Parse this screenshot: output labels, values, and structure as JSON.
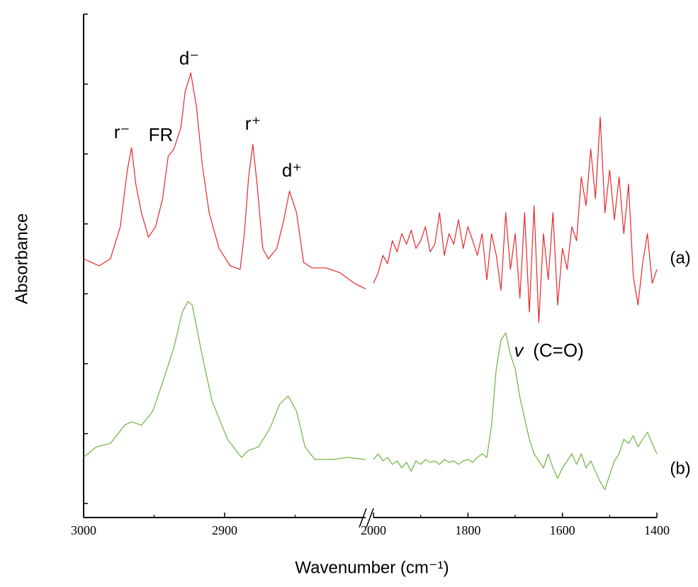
{
  "chart_data": [
    {
      "type": "line",
      "y_label": "Absorbance",
      "x_label": "Wavenumber (cm⁻¹)",
      "ylim": [
        -0.2,
        7
      ],
      "yticks": [
        0,
        1,
        2,
        3,
        4,
        5,
        6,
        7
      ],
      "ytick_labels": false,
      "xlim": [
        3000,
        2800
      ],
      "xticks": [
        3000,
        2900
      ],
      "xminorticks": [
        2950,
        2850
      ],
      "annotations": [
        {
          "text": "r⁻"
        },
        {
          "text": "FR"
        },
        {
          "text": "d⁻"
        },
        {
          "text": "r⁺"
        },
        {
          "text": "d⁺"
        }
      ],
      "series": [
        {
          "color": "#e8262a",
          "x": [
            3000,
            2989,
            2981,
            2974,
            2969,
            2966,
            2963,
            2959,
            2954,
            2949,
            2944,
            2940,
            2936,
            2931,
            2928,
            2924,
            2920,
            2916,
            2911,
            2904,
            2896,
            2889,
            2886,
            2883,
            2880,
            2877,
            2873,
            2869,
            2863,
            2858,
            2854,
            2849,
            2844,
            2838,
            2828,
            2818,
            2808,
            2800
          ],
          "values": [
            3.5,
            3.4,
            3.5,
            3.96,
            4.77,
            5.09,
            4.57,
            4.16,
            3.81,
            3.96,
            4.36,
            4.97,
            5.07,
            5.38,
            5.89,
            6.16,
            5.68,
            4.87,
            4.16,
            3.65,
            3.4,
            3.35,
            3.86,
            4.67,
            5.14,
            4.57,
            3.65,
            3.5,
            3.65,
            4.06,
            4.47,
            4.16,
            3.45,
            3.37,
            3.37,
            3.3,
            3.15,
            3.07
          ]
        },
        {
          "color": "#6db33f",
          "x": [
            3000,
            2991,
            2981,
            2971,
            2966,
            2959,
            2951,
            2944,
            2936,
            2930,
            2926,
            2923,
            2916,
            2909,
            2898,
            2888,
            2883,
            2876,
            2868,
            2861,
            2855,
            2849,
            2843,
            2836,
            2823,
            2813,
            2800
          ],
          "values": [
            0.66,
            0.81,
            0.86,
            1.12,
            1.17,
            1.12,
            1.32,
            1.73,
            2.23,
            2.74,
            2.89,
            2.84,
            2.13,
            1.47,
            0.92,
            0.66,
            0.76,
            0.81,
            1.07,
            1.42,
            1.54,
            1.32,
            0.81,
            0.63,
            0.63,
            0.66,
            0.63
          ]
        }
      ]
    },
    {
      "type": "line",
      "xlim": [
        2000,
        1400
      ],
      "xticks": [
        2000,
        1800,
        1600,
        1400
      ],
      "xminorticks": [
        1900,
        1700,
        1500
      ],
      "annotations": [
        {
          "text": "v"
        },
        {
          "text": "(C=O)"
        }
      ],
      "series": [
        {
          "name": "(a)",
          "color": "#e8262a",
          "x": [
            2000,
            1990,
            1980,
            1970,
            1960,
            1950,
            1940,
            1930,
            1920,
            1910,
            1900,
            1890,
            1880,
            1870,
            1860,
            1850,
            1840,
            1830,
            1820,
            1810,
            1800,
            1790,
            1780,
            1770,
            1760,
            1750,
            1740,
            1730,
            1720,
            1710,
            1700,
            1690,
            1680,
            1670,
            1660,
            1650,
            1640,
            1630,
            1620,
            1610,
            1600,
            1590,
            1580,
            1570,
            1560,
            1550,
            1540,
            1530,
            1520,
            1510,
            1500,
            1490,
            1480,
            1470,
            1460,
            1450,
            1440,
            1430,
            1420,
            1410,
            1400
          ],
          "values": [
            3.15,
            3.3,
            3.55,
            3.43,
            3.76,
            3.6,
            3.86,
            3.71,
            3.91,
            3.65,
            3.76,
            3.96,
            3.6,
            3.71,
            4.16,
            3.55,
            3.86,
            3.71,
            4.06,
            3.65,
            3.96,
            3.76,
            3.55,
            3.86,
            3.2,
            3.86,
            3.55,
            3.05,
            4.16,
            3.35,
            3.86,
            2.94,
            4.16,
            2.74,
            4.26,
            2.59,
            3.86,
            3.2,
            4.16,
            2.84,
            3.65,
            3.35,
            3.96,
            3.76,
            4.67,
            4.26,
            5.07,
            4.36,
            5.53,
            4.16,
            4.77,
            4.06,
            4.67,
            3.86,
            4.57,
            3.25,
            2.84,
            3.45,
            3.86,
            3.15,
            3.35
          ]
        },
        {
          "name": "(b)",
          "color": "#6db33f",
          "x": [
            2000,
            1990,
            1980,
            1970,
            1960,
            1950,
            1940,
            1930,
            1920,
            1910,
            1900,
            1890,
            1880,
            1870,
            1860,
            1850,
            1840,
            1830,
            1820,
            1810,
            1800,
            1790,
            1780,
            1770,
            1760,
            1750,
            1740,
            1730,
            1720,
            1710,
            1700,
            1690,
            1680,
            1670,
            1660,
            1650,
            1640,
            1630,
            1620,
            1610,
            1600,
            1590,
            1580,
            1570,
            1560,
            1550,
            1540,
            1530,
            1520,
            1510,
            1500,
            1490,
            1480,
            1470,
            1460,
            1450,
            1440,
            1430,
            1420,
            1410,
            1400
          ],
          "values": [
            0.63,
            0.71,
            0.61,
            0.66,
            0.56,
            0.61,
            0.51,
            0.59,
            0.46,
            0.61,
            0.56,
            0.63,
            0.59,
            0.61,
            0.56,
            0.63,
            0.59,
            0.61,
            0.56,
            0.61,
            0.63,
            0.59,
            0.66,
            0.71,
            0.66,
            1.12,
            1.93,
            2.34,
            2.44,
            2.13,
            1.93,
            1.52,
            1.22,
            0.92,
            0.71,
            0.61,
            0.51,
            0.71,
            0.51,
            0.36,
            0.51,
            0.61,
            0.71,
            0.56,
            0.71,
            0.51,
            0.61,
            0.46,
            0.31,
            0.2,
            0.41,
            0.61,
            0.71,
            0.92,
            0.86,
            0.97,
            0.81,
            0.92,
            1.02,
            0.86,
            0.71
          ]
        }
      ]
    }
  ]
}
